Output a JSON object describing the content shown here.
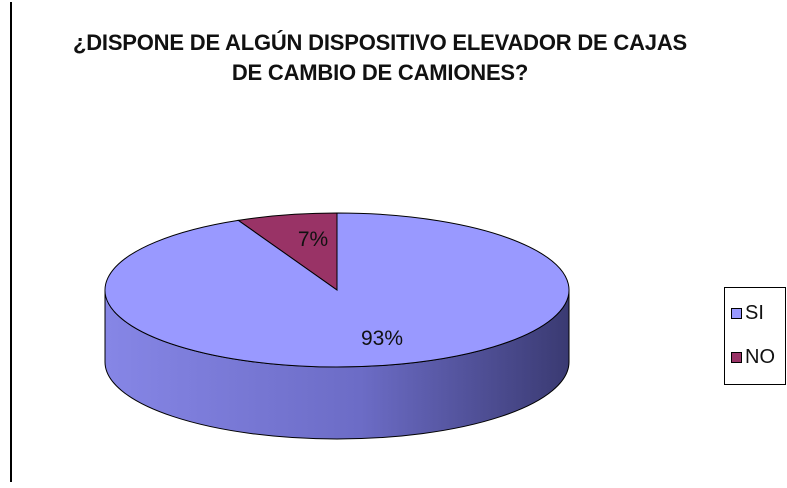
{
  "chart_data": {
    "type": "pie",
    "title": "¿DISPONE DE ALGÚN DISPOSITIVO ELEVADOR DE CAJAS DE CAMBIO DE CAMIONES?",
    "title_lines": [
      "¿DISPONE DE ALGÚN DISPOSITIVO ELEVADOR DE CAJAS",
      "DE CAMBIO DE CAMIONES?"
    ],
    "categories": [
      "SI",
      "NO"
    ],
    "values": [
      93,
      7
    ],
    "labels": [
      "93%",
      "7%"
    ],
    "colors": [
      "#9999ff",
      "#993366"
    ],
    "legend_position": "right",
    "style": "3d"
  }
}
